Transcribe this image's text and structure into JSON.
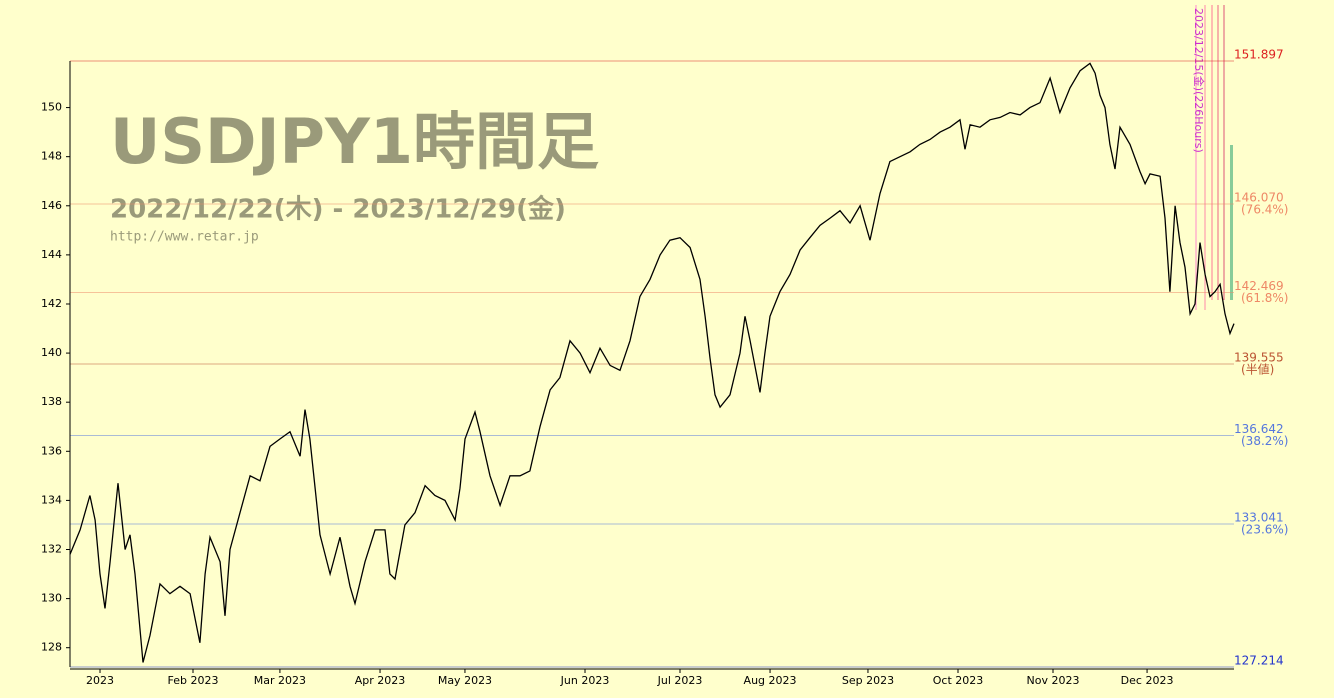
{
  "chart_data": {
    "type": "line",
    "title": "USDJPY1時間足",
    "subtitle": "2022/12/22(木) - 2023/12/29(金)",
    "source": "http://www.retar.jp",
    "annotation": "2023/12/15(金)(226Hours)",
    "series": [
      {
        "name": "USDJPY",
        "color": "#000000",
        "x": [
          0,
          55,
          109,
          137,
          164,
          191,
          219,
          262,
          301,
          328,
          355,
          399,
          437,
          492,
          546,
          601,
          656,
          710,
          738,
          765,
          820,
          847,
          874,
          929,
          984,
          1038,
          1093,
          1147,
          1202,
          1257,
          1284,
          1311,
          1339,
          1366,
          1421,
          1475,
          1530,
          1557,
          1612,
          1667,
          1721,
          1748,
          1776,
          1830,
          1885,
          1940,
          1994,
          2049,
          2104,
          2131,
          2158,
          2213,
          2240,
          2295,
          2350,
          2404,
          2459,
          2513,
          2568,
          2623,
          2677,
          2732,
          2787,
          2841,
          2896,
          2951,
          3005,
          3060,
          3114,
          3169,
          3224,
          3278,
          3333,
          3388,
          3442,
          3470,
          3497,
          3524,
          3552,
          3606,
          3661,
          3688,
          3716,
          3770,
          3797,
          3825,
          3879,
          3934,
          3989,
          4043,
          4098,
          4153,
          4207,
          4262,
          4317,
          4371,
          4426,
          4480,
          4535,
          4590,
          4644,
          4699,
          4754,
          4808,
          4863,
          4890,
          4918,
          4972,
          5027,
          5082,
          5136,
          5191,
          5245,
          5300,
          5355,
          5382,
          5409,
          5464,
          5519,
          5573,
          5601,
          5628,
          5655,
          5682,
          5710,
          5737,
          5792,
          5846,
          5874,
          5901,
          5956,
          5983,
          6010,
          6038,
          6065,
          6092,
          6120,
          6147,
          6174,
          6202,
          6229,
          6256,
          6284,
          6311,
          6338,
          6360
        ],
        "values": [
          131.8,
          132.8,
          134.2,
          133.2,
          131,
          129.6,
          131.5,
          134.7,
          132,
          132.6,
          131,
          127.4,
          128.5,
          130.6,
          130.2,
          130.5,
          130.2,
          128.2,
          131,
          132.5,
          131.5,
          129.3,
          132,
          133.5,
          135,
          134.8,
          136.2,
          136.5,
          136.8,
          135.8,
          137.7,
          136.5,
          134.5,
          132.6,
          131,
          132.5,
          130.5,
          129.8,
          131.5,
          132.8,
          132.8,
          131,
          130.8,
          133,
          133.5,
          134.6,
          134.2,
          134,
          133.2,
          134.5,
          136.5,
          137.6,
          136.8,
          135,
          133.8,
          135,
          135,
          135.2,
          137,
          138.5,
          139,
          140.5,
          140,
          139.2,
          140.2,
          139.5,
          139.3,
          140.5,
          142.3,
          143,
          144,
          144.6,
          144.7,
          144.3,
          143,
          141.5,
          139.8,
          138.3,
          137.8,
          138.3,
          140,
          141.5,
          140.5,
          138.4,
          140,
          141.5,
          142.5,
          143.2,
          144.2,
          144.7,
          145.2,
          145.5,
          145.8,
          145.3,
          146,
          144.6,
          146.5,
          147.8,
          148,
          148.2,
          148.5,
          148.7,
          149,
          149.2,
          149.5,
          148.3,
          149.3,
          149.2,
          149.5,
          149.6,
          149.8,
          149.7,
          150,
          150.2,
          151.2,
          150.5,
          149.8,
          150.8,
          151.5,
          151.8,
          151.4,
          150.5,
          150,
          148.5,
          147.5,
          149.2,
          148.5,
          147.4,
          146.9,
          147.3,
          147.2,
          145.5,
          142.5,
          146,
          144.5,
          143.5,
          141.6,
          142,
          144.5,
          143.2,
          142.3,
          142.5,
          142.8,
          141.6,
          140.8,
          141.2
        ]
      }
    ],
    "xlim": [
      0,
      6360
    ],
    "xticks": [
      {
        "value": 164,
        "label": "2023"
      },
      {
        "value": 672,
        "label": "Feb 2023"
      },
      {
        "value": 1147,
        "label": "Mar 2023"
      },
      {
        "value": 1694,
        "label": "Apr 2023"
      },
      {
        "value": 2158,
        "label": "May 2023"
      },
      {
        "value": 2814,
        "label": "Jun 2023"
      },
      {
        "value": 3333,
        "label": "Jul 2023"
      },
      {
        "value": 3825,
        "label": "Aug 2023"
      },
      {
        "value": 4360,
        "label": "Sep 2023"
      },
      {
        "value": 4852,
        "label": "Oct 2023"
      },
      {
        "value": 5371,
        "label": "Nov 2023"
      },
      {
        "value": 5885,
        "label": "Dec 2023"
      }
    ],
    "ylim": [
      127.214,
      151.897
    ],
    "yticks": [
      128,
      130,
      132,
      134,
      136,
      138,
      140,
      142,
      144,
      146,
      148,
      150
    ],
    "levels": [
      {
        "value": 151.897,
        "label": "151.897",
        "color": "#dd2222"
      },
      {
        "value": 146.07,
        "label": "146.070",
        "ratio": "(76.4%)",
        "color": "#ee8866"
      },
      {
        "value": 142.469,
        "label": "142.469",
        "ratio": "(61.8%)",
        "color": "#ee8866"
      },
      {
        "value": 139.555,
        "label": "139.555",
        "ratio": "(半値)",
        "color": "#bb5533"
      },
      {
        "value": 136.642,
        "label": "136.642",
        "ratio": "(38.2%)",
        "color": "#5577dd"
      },
      {
        "value": 133.041,
        "label": "133.041",
        "ratio": "(23.6%)",
        "color": "#5577dd"
      },
      {
        "value": 127.214,
        "label": "127.214",
        "color": "#2233cc"
      }
    ]
  }
}
